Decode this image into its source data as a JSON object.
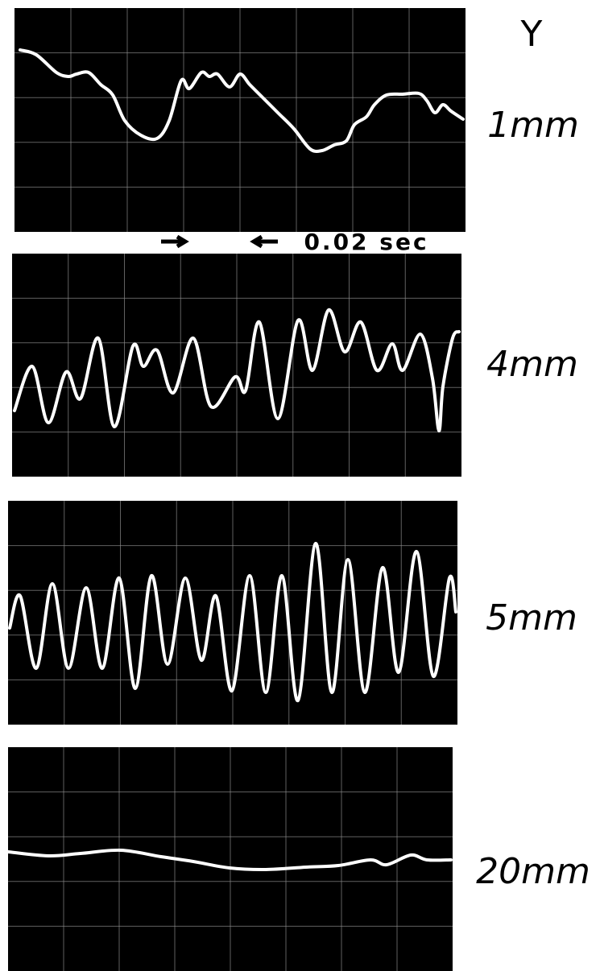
{
  "figure": {
    "axis_label": "Y",
    "time_marker": "0.02 sec",
    "panels": [
      "1mm",
      "4mm",
      "5mm",
      "20mm"
    ]
  }
}
